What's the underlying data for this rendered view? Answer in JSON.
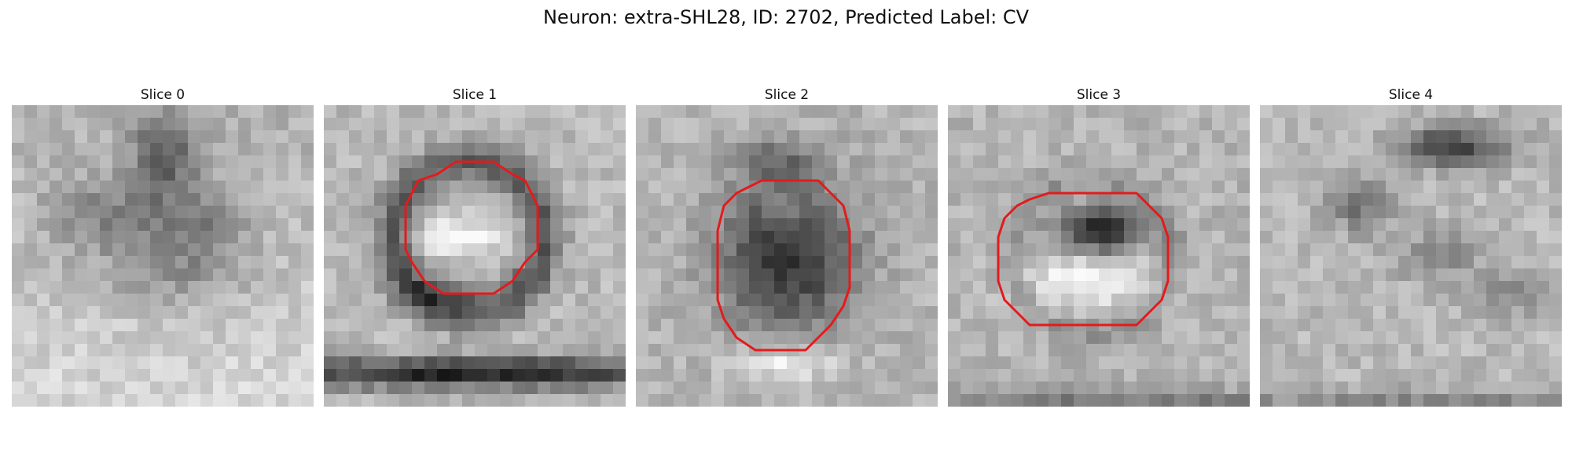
{
  "figure": {
    "title": "Neuron: extra-SHL28, ID: 2702, Predicted Label: CV",
    "contour_color": "#e41a1c",
    "slices": [
      {
        "label": "Slice 0",
        "has_contour": false
      },
      {
        "label": "Slice 1",
        "has_contour": true
      },
      {
        "label": "Slice 2",
        "has_contour": true
      },
      {
        "label": "Slice 3",
        "has_contour": true
      },
      {
        "label": "Slice 4",
        "has_contour": false
      }
    ]
  }
}
